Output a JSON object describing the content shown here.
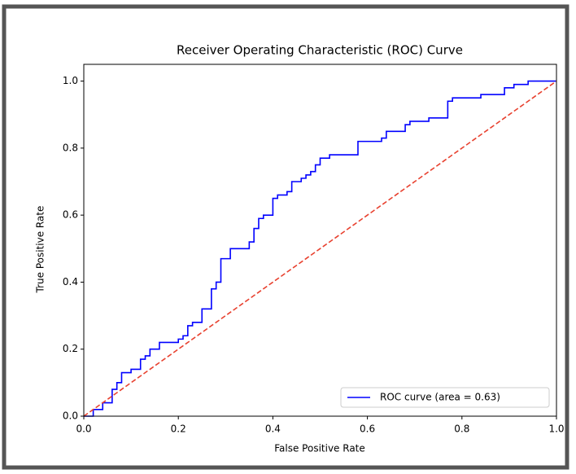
{
  "chart_data": {
    "type": "line",
    "title": "Receiver Operating Characteristic (ROC) Curve",
    "x_label": "False Positive Rate",
    "y_label": "True Positive Rate",
    "xlim": [
      0,
      1
    ],
    "ylim": [
      0,
      1.05
    ],
    "xticks": [
      {
        "value": 0,
        "label": "0.0"
      },
      0.2,
      0.4,
      0.6,
      0.8,
      {
        "value": 1,
        "label": "1.0"
      }
    ],
    "yticks": [
      {
        "value": 0,
        "label": "0.0"
      },
      0.2,
      0.4,
      0.6,
      0.8,
      {
        "value": 1,
        "label": "1.0"
      }
    ],
    "legend": "lower right",
    "series": [
      {
        "name": "ROC curve (area = 0.63)",
        "color": "#0000ff",
        "dash": "solid",
        "x": [
          0,
          0.02,
          0.02,
          0.04,
          0.04,
          0.06,
          0.06,
          0.07,
          0.07,
          0.08,
          0.08,
          0.1,
          0.1,
          0.12,
          0.12,
          0.13,
          0.13,
          0.14,
          0.14,
          0.16,
          0.16,
          0.2,
          0.2,
          0.21,
          0.21,
          0.22,
          0.22,
          0.23,
          0.23,
          0.25,
          0.25,
          0.27,
          0.27,
          0.28,
          0.28,
          0.29,
          0.29,
          0.31,
          0.31,
          0.35,
          0.35,
          0.36,
          0.36,
          0.37,
          0.37,
          0.38,
          0.38,
          0.4,
          0.4,
          0.41,
          0.41,
          0.43,
          0.43,
          0.44,
          0.44,
          0.46,
          0.46,
          0.47,
          0.47,
          0.48,
          0.48,
          0.49,
          0.49,
          0.5,
          0.5,
          0.52,
          0.52,
          0.58,
          0.58,
          0.63,
          0.63,
          0.64,
          0.64,
          0.68,
          0.68,
          0.69,
          0.69,
          0.73,
          0.73,
          0.77,
          0.77,
          0.78,
          0.78,
          0.84,
          0.84,
          0.89,
          0.89,
          0.91,
          0.91,
          0.94,
          0.94,
          1.0
        ],
        "values": [
          0,
          0,
          0.02,
          0.02,
          0.04,
          0.04,
          0.08,
          0.08,
          0.1,
          0.1,
          0.13,
          0.13,
          0.14,
          0.14,
          0.17,
          0.17,
          0.18,
          0.18,
          0.2,
          0.2,
          0.22,
          0.22,
          0.23,
          0.23,
          0.24,
          0.24,
          0.27,
          0.27,
          0.28,
          0.28,
          0.32,
          0.32,
          0.38,
          0.38,
          0.4,
          0.4,
          0.47,
          0.47,
          0.5,
          0.5,
          0.52,
          0.52,
          0.56,
          0.56,
          0.59,
          0.59,
          0.6,
          0.6,
          0.65,
          0.65,
          0.66,
          0.66,
          0.67,
          0.67,
          0.7,
          0.7,
          0.71,
          0.71,
          0.72,
          0.72,
          0.73,
          0.73,
          0.75,
          0.75,
          0.77,
          0.77,
          0.78,
          0.78,
          0.82,
          0.82,
          0.83,
          0.83,
          0.85,
          0.85,
          0.87,
          0.87,
          0.88,
          0.88,
          0.89,
          0.89,
          0.94,
          0.94,
          0.95,
          0.95,
          0.96,
          0.96,
          0.98,
          0.98,
          0.99,
          0.99,
          1.0,
          1.0
        ]
      },
      {
        "color": "#e8412f",
        "dash": "dashed",
        "x": [
          0,
          1
        ],
        "values": [
          0,
          1
        ]
      }
    ]
  }
}
